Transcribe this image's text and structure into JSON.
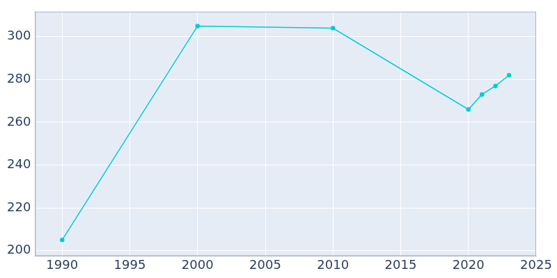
{
  "chart_data": {
    "type": "line",
    "x": [
      1990,
      2000,
      2010,
      2020,
      2021,
      2022,
      2023
    ],
    "values": [
      205,
      305,
      304,
      266,
      273,
      277,
      282
    ],
    "color": "#00ccd3",
    "marker": "circle",
    "xlim": [
      1988,
      2025
    ],
    "xticks": [
      1990,
      1995,
      2000,
      2005,
      2010,
      2015,
      2020,
      2025
    ],
    "ylim": [
      197.5,
      311.7
    ],
    "yticks": [
      200,
      220,
      240,
      260,
      280,
      300
    ],
    "grid": true
  }
}
